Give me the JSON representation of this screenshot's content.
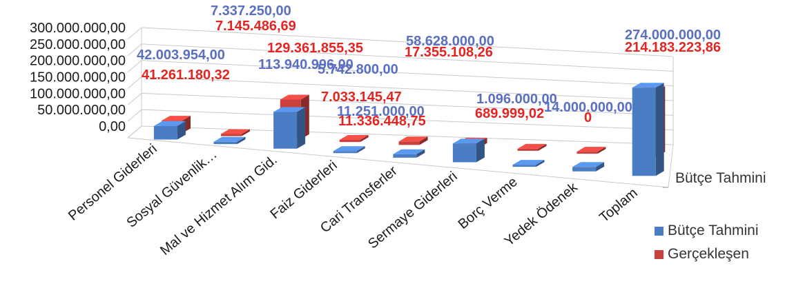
{
  "chart_data": {
    "type": "bar",
    "categories": [
      "Personel Giderleri",
      "Sosyal Güvenlik…",
      "Mal ve Hizmet Alım Gid.",
      "Faiz Giderleri",
      "Cari Transferler",
      "Sermaye Giderleri",
      "Borç Verme",
      "Yedek Ödenek",
      "Toplam"
    ],
    "series": [
      {
        "name": "Bütçe Tahmini",
        "values": [
          42003954.0,
          7337250.0,
          113940996.0,
          5742800.0,
          11251000.0,
          58628000.0,
          1096000.0,
          14000000.0,
          274000000.0
        ],
        "labels": [
          "42.003.954,00",
          "7.337.250,00",
          "113.940.996,00",
          "5.742.800,00",
          "11.251.000,00",
          "58.628.000,00",
          "1.096.000,00",
          "14.000.000,00",
          "274.000.000,00"
        ],
        "color": "#4a7dc4"
      },
      {
        "name": "Gerçekleşen",
        "values": [
          41261180.32,
          7145486.69,
          129361855.35,
          7033145.47,
          11336448.75,
          17355108.26,
          689999.02,
          0,
          214183223.86
        ],
        "labels": [
          "41.261.180,32",
          "7.145.486,69",
          "129.361.855,35",
          "7.033.145,47",
          "11.336.448,75",
          "17.355.108,26",
          "689.999,02",
          "0",
          "214.183.223,86"
        ],
        "color": "#c8413c"
      }
    ],
    "depth_axis_label": "Bütçe Tahmini",
    "yticks": [
      "300.000.000,00",
      "250.000.000,00",
      "200.000.000,00",
      "150.000.000,00",
      "100.000.000,00",
      "50.000.000,00",
      "0,00"
    ],
    "ylim": [
      0,
      300000000
    ],
    "label_colors": {
      "budget": "#5b6fc0",
      "actual": "#e52421"
    },
    "legend": {
      "position": "right",
      "items": [
        {
          "label": "Bütçe Tahmini",
          "color": "#4a7dc4"
        },
        {
          "label": "Gerçekleşen",
          "color": "#c8413c"
        }
      ]
    }
  }
}
